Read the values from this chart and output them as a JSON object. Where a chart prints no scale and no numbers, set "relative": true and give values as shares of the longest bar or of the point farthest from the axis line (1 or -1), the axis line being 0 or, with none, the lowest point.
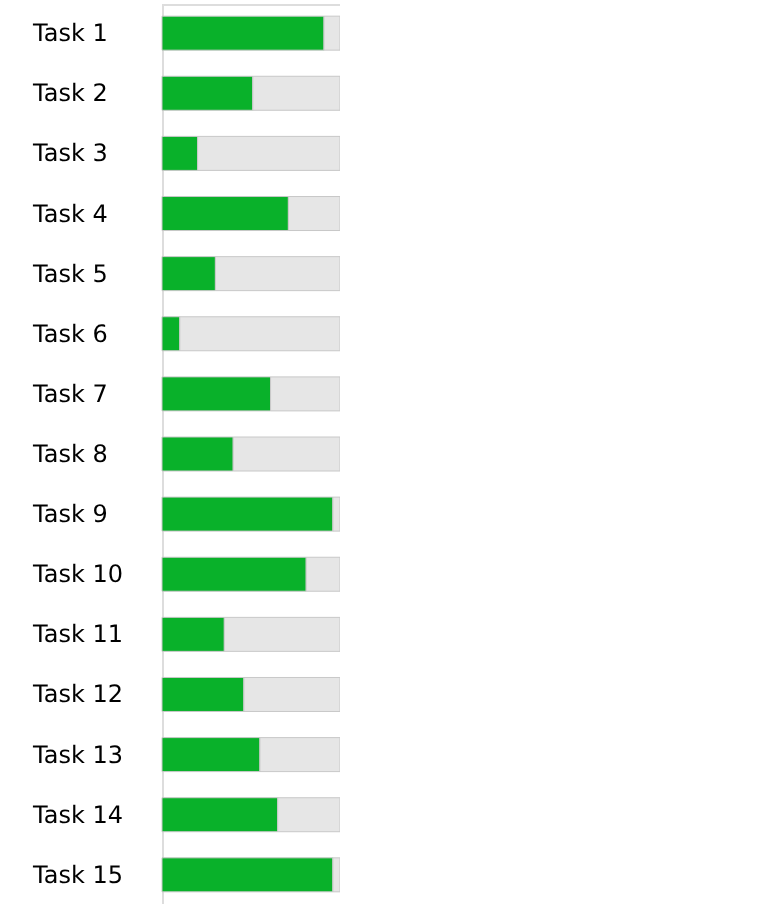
{
  "chart_data": {
    "type": "bar",
    "orientation": "horizontal",
    "stacked": true,
    "relative": true,
    "tick_labels": "y",
    "categories": [
      "Task 1",
      "Task 2",
      "Task 3",
      "Task 4",
      "Task 5",
      "Task 6",
      "Task 7",
      "Task 8",
      "Task 9",
      "Task 10",
      "Task 11",
      "Task 12",
      "Task 13",
      "Task 14",
      "Task 15"
    ],
    "series": [
      {
        "color": "#09b12a",
        "values": [
          0.91,
          0.51,
          0.2,
          0.71,
          0.3,
          0.1,
          0.61,
          0.4,
          0.96,
          0.81,
          0.35,
          0.46,
          0.55,
          0.65,
          0.96
        ]
      },
      {
        "color": "#e6e6e6",
        "values": [
          0.09,
          0.49,
          0.8,
          0.29,
          0.7,
          0.9,
          0.39,
          0.6,
          0.04,
          0.19,
          0.65,
          0.54,
          0.45,
          0.35,
          0.04
        ]
      }
    ]
  }
}
